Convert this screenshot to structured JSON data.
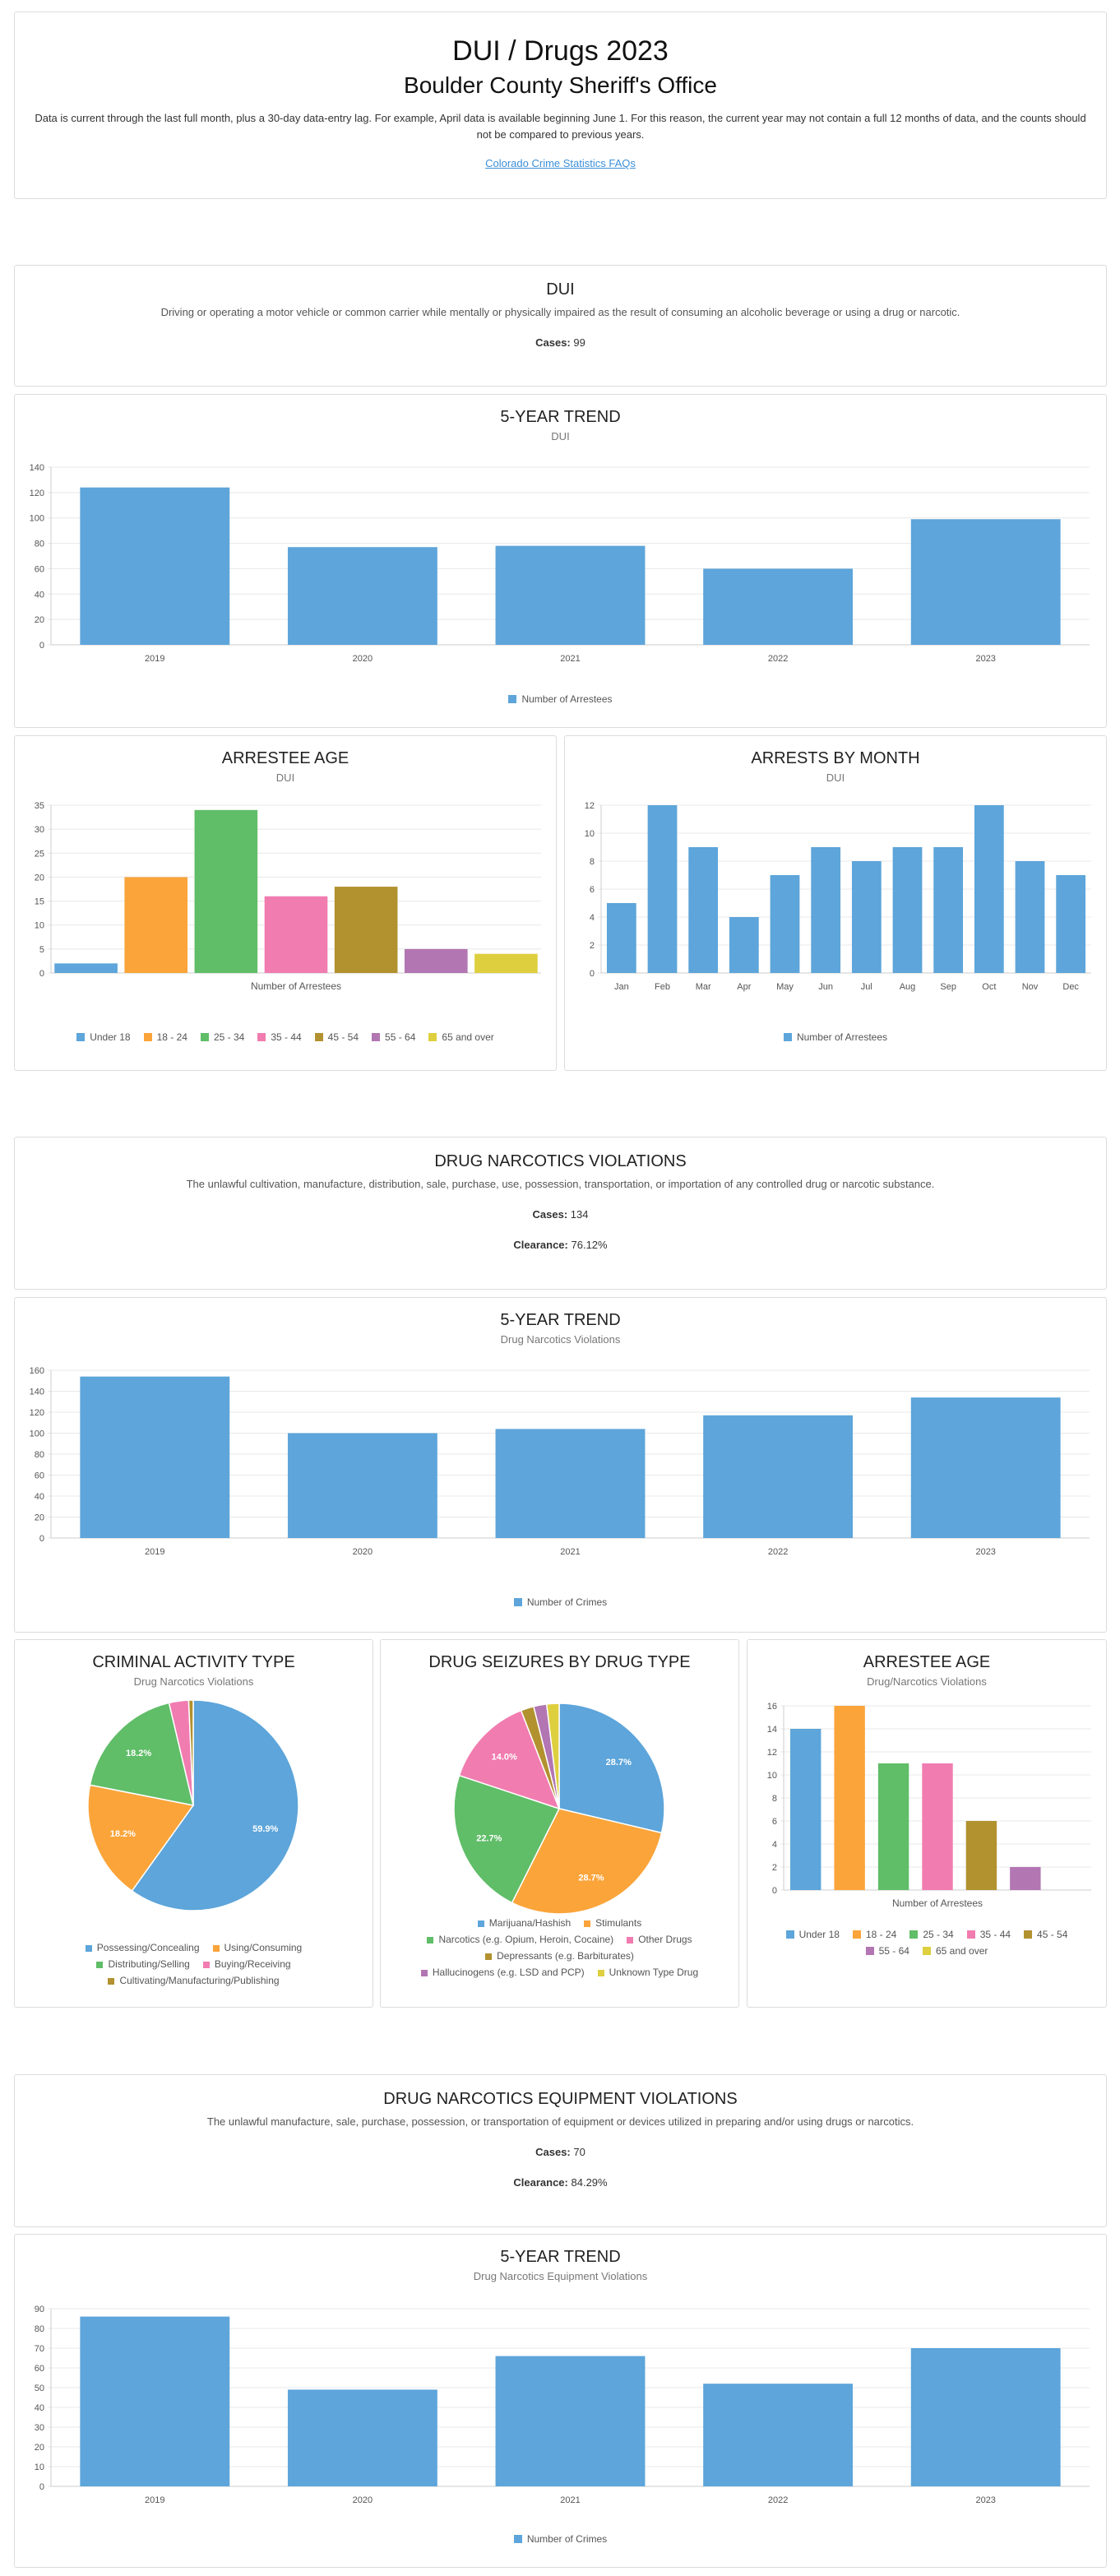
{
  "header": {
    "title": "DUI / Drugs 2023",
    "subtitle": "Boulder County Sheriff's Office",
    "note": "Data is current through the last full month, plus a 30-day data-entry lag. For example, April data is available beginning June 1. For this reason, the current year may not contain a full 12 months of data, and the counts should not be compared to previous years.",
    "link": "Colorado Crime Statistics FAQs"
  },
  "dui": {
    "title": "DUI",
    "description": "Driving or operating a motor vehicle or common carrier while mentally or physically impaired as the result of consuming an alcoholic beverage or using a drug or narcotic.",
    "cases_label": "Cases:",
    "cases": "99"
  },
  "drug": {
    "title": "DRUG NARCOTICS VIOLATIONS",
    "description": "The unlawful cultivation, manufacture, distribution, sale, purchase, use, possession, transportation, or importation of any controlled drug or narcotic substance.",
    "cases_label": "Cases:",
    "cases": "134",
    "clearance_label": "Clearance:",
    "clearance": "76.12%"
  },
  "equip": {
    "title": "DRUG NARCOTICS EQUIPMENT VIOLATIONS",
    "description": "The unlawful manufacture, sale, purchase, possession, or transportation of equipment or devices utilized in preparing and/or using drugs or narcotics.",
    "cases_label": "Cases:",
    "cases": "70",
    "clearance_label": "Clearance:",
    "clearance": "84.29%"
  },
  "colors": {
    "blue": "#5da5da",
    "orange": "#faa43a",
    "green": "#60bd68",
    "pink": "#f17cb0",
    "brown": "#b2912f",
    "purple": "#b276b2",
    "yellow": "#decf3f"
  },
  "chart_data": [
    {
      "id": "dui_trend",
      "type": "bar",
      "title": "5-YEAR TREND",
      "subtitle": "DUI",
      "categories": [
        "2019",
        "2020",
        "2021",
        "2022",
        "2023"
      ],
      "values": [
        124,
        77,
        78,
        60,
        99
      ],
      "ylim": [
        0,
        140
      ],
      "yticks": [
        0,
        20,
        40,
        60,
        80,
        100,
        120,
        140
      ],
      "legend": [
        "Number of Arrestees"
      ]
    },
    {
      "id": "dui_age",
      "type": "bar",
      "title": "ARRESTEE AGE",
      "subtitle": "DUI",
      "xlabel": "Number of Arrestees",
      "categories": [
        "Under 18",
        "18 - 24",
        "25 - 34",
        "35 - 44",
        "45 - 54",
        "55 - 64",
        "65 and over"
      ],
      "values": [
        2,
        20,
        34,
        16,
        18,
        5,
        4
      ],
      "ylim": [
        0,
        35
      ],
      "yticks": [
        0,
        5,
        10,
        15,
        20,
        25,
        30,
        35
      ],
      "legend": [
        "Under 18",
        "18 - 24",
        "25 - 34",
        "35 - 44",
        "45 - 54",
        "55 - 64",
        "65 and over"
      ]
    },
    {
      "id": "dui_month",
      "type": "bar",
      "title": "ARRESTS BY MONTH",
      "subtitle": "DUI",
      "categories": [
        "Jan",
        "Feb",
        "Mar",
        "Apr",
        "May",
        "Jun",
        "Jul",
        "Aug",
        "Sep",
        "Oct",
        "Nov",
        "Dec"
      ],
      "values": [
        5,
        12,
        9,
        4,
        7,
        9,
        8,
        9,
        9,
        12,
        8,
        7
      ],
      "ylim": [
        0,
        12
      ],
      "yticks": [
        0,
        2,
        4,
        6,
        8,
        10,
        12
      ],
      "legend": [
        "Number of Arrestees"
      ]
    },
    {
      "id": "drug_trend",
      "type": "bar",
      "title": "5-YEAR TREND",
      "subtitle": "Drug Narcotics Violations",
      "categories": [
        "2019",
        "2020",
        "2021",
        "2022",
        "2023"
      ],
      "values": [
        154,
        100,
        104,
        117,
        134
      ],
      "ylim": [
        0,
        160
      ],
      "yticks": [
        0,
        20,
        40,
        60,
        80,
        100,
        120,
        140,
        160
      ],
      "legend": [
        "Number of Crimes"
      ]
    },
    {
      "id": "activity",
      "type": "pie",
      "title": "CRIMINAL ACTIVITY TYPE",
      "subtitle": "Drug Narcotics Violations",
      "labels": [
        "Possessing/Concealing",
        "Using/Consuming",
        "Distributing/Selling",
        "Buying/Receiving",
        "Cultivating/Manufacturing/Publishing"
      ],
      "values": [
        59.9,
        18.2,
        18.2,
        3.0,
        0.7
      ],
      "data_labels": [
        "59.9%",
        "18.2%",
        "18.2%",
        "",
        ""
      ]
    },
    {
      "id": "seizures",
      "type": "pie",
      "title": "DRUG SEIZURES BY DRUG TYPE",
      "labels": [
        "Marijuana/Hashish",
        "Stimulants",
        "Narcotics (e.g. Opium, Heroin, Cocaine)",
        "Other Drugs",
        "Depressants (e.g. Barbiturates)",
        "Hallucinogens (e.g. LSD and PCP)",
        "Unknown Type Drug"
      ],
      "values": [
        28.7,
        28.7,
        22.7,
        14.0,
        2.0,
        2.0,
        1.9
      ],
      "data_labels": [
        "28.7%",
        "28.7%",
        "22.7%",
        "14.0%",
        "",
        "",
        ""
      ]
    },
    {
      "id": "drug_age",
      "type": "bar",
      "title": "ARRESTEE AGE",
      "subtitle": "Drug/Narcotics Violations",
      "xlabel": "Number of Arrestees",
      "categories": [
        "Under 18",
        "18 - 24",
        "25 - 34",
        "35 - 44",
        "45 - 54",
        "55 - 64",
        "65 and over"
      ],
      "values": [
        14,
        16,
        11,
        11,
        6,
        2,
        0
      ],
      "ylim": [
        0,
        16
      ],
      "yticks": [
        0,
        2,
        4,
        6,
        8,
        10,
        12,
        14,
        16
      ],
      "legend": [
        "Under 18",
        "18 - 24",
        "25 - 34",
        "35 - 44",
        "45 - 54",
        "55 - 64",
        "65 and over"
      ]
    },
    {
      "id": "equip_trend",
      "type": "bar",
      "title": "5-YEAR TREND",
      "subtitle": "Drug Narcotics Equipment Violations",
      "categories": [
        "2019",
        "2020",
        "2021",
        "2022",
        "2023"
      ],
      "values": [
        86,
        49,
        66,
        52,
        70
      ],
      "ylim": [
        0,
        90
      ],
      "yticks": [
        0,
        10,
        20,
        30,
        40,
        50,
        60,
        70,
        80,
        90
      ],
      "legend": [
        "Number of Crimes"
      ]
    }
  ]
}
